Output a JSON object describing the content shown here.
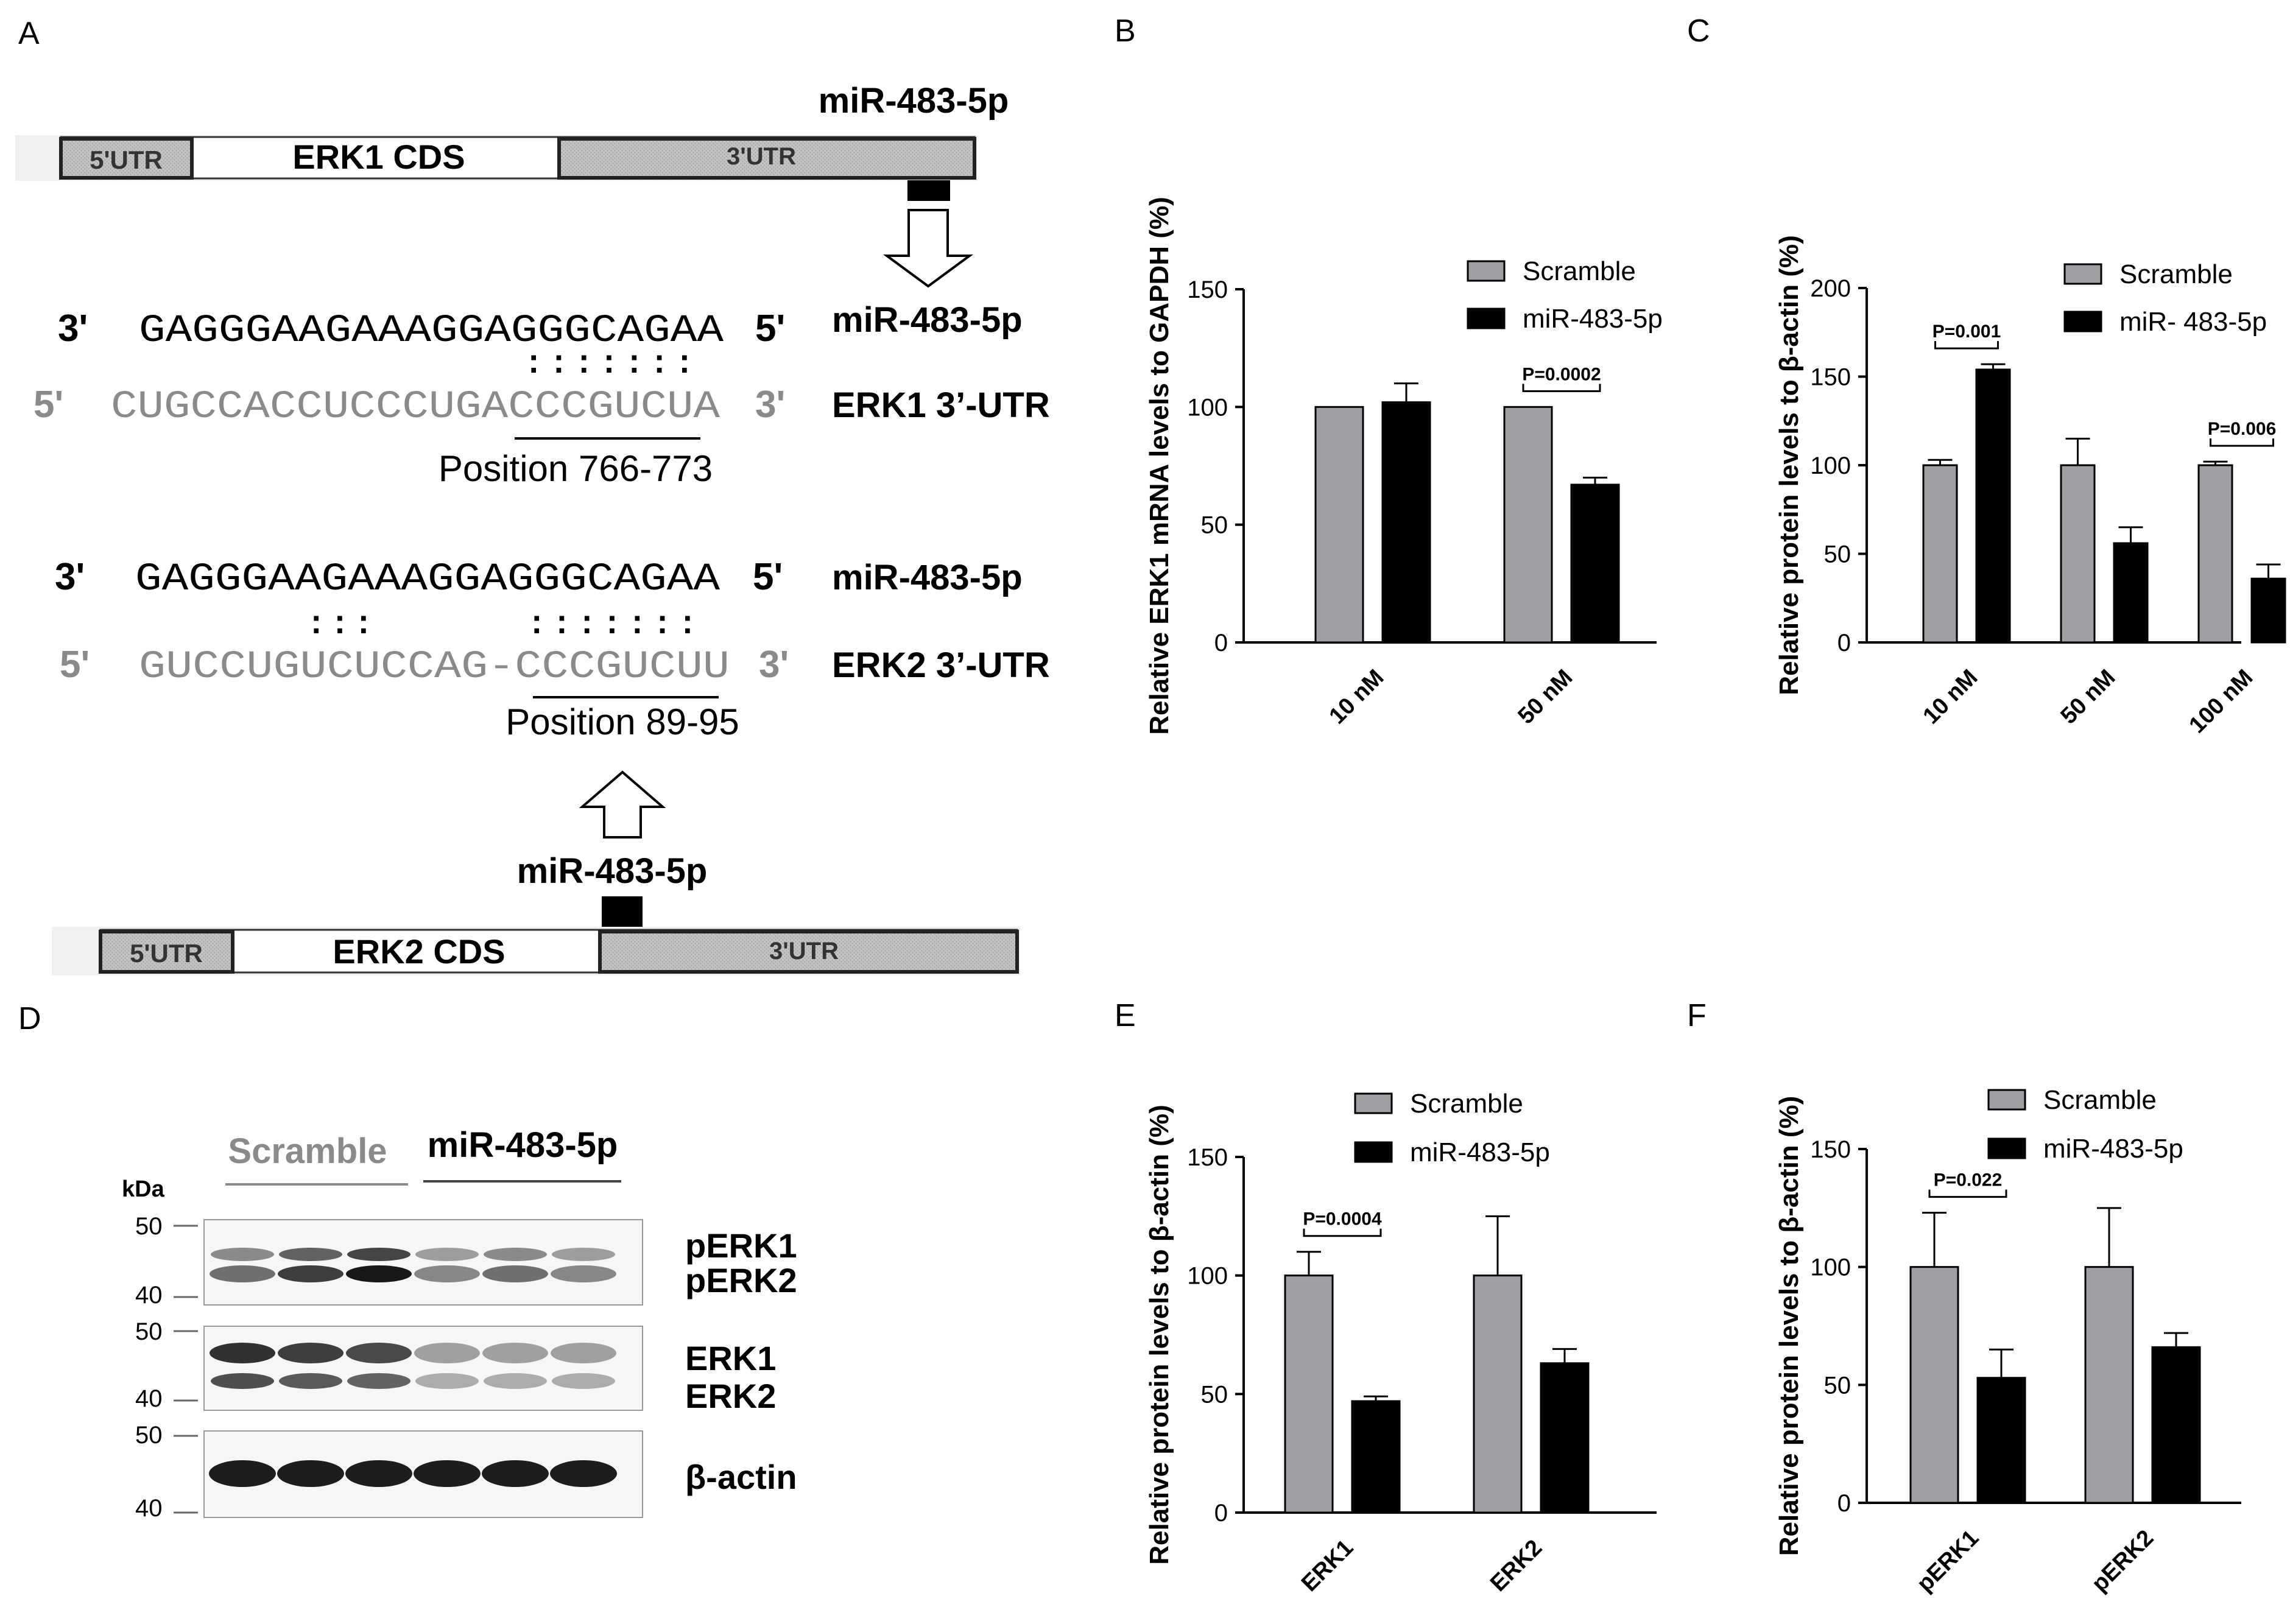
{
  "panel_letters": [
    "A",
    "B",
    "C",
    "D",
    "E",
    "F"
  ],
  "panel_a": {
    "erk1_map": {
      "utr5": "5'UTR",
      "cds": "ERK1 CDS",
      "utr3": "3'UTR",
      "mirna": "miR-483-5p"
    },
    "erk2_map": {
      "utr5": "5'UTR",
      "cds": "ERK2 CDS",
      "utr3": "3'UTR",
      "mirna": "miR-483-5p"
    },
    "duplex1": {
      "mi_end3": "3'",
      "mi_seq": "GAGGGAAGAAAGGAGGGCAGAA",
      "mi_end5": "5'",
      "mi_name": "miR-483-5p",
      "bars": ":::::::",
      "t_end5": "5'",
      "t_seq": "CUGCCACCUCCCUGACCCGUCUA",
      "t_end3": "3'",
      "t_name": "ERK1 3’-UTR",
      "position": "Position 766-773"
    },
    "duplex2": {
      "mi_end3": "3'",
      "mi_seq": "GAGGGAAGAAAGGAGGGCAGAA",
      "mi_end5": "5'",
      "mi_name": "miR-483-5p",
      "bars1": ":::",
      "bars2": ":::::::",
      "t_end5": "5'",
      "t_seq": "GUCCUGUCUCCAG-CCCGUCUU",
      "t_end3": "3'",
      "t_name": "ERK2 3’-UTR",
      "position": "Position 89-95"
    }
  },
  "panel_d": {
    "group1": "Scramble",
    "group2": "miR-483-5p",
    "kda": "kDa",
    "markers": [
      "50",
      "40",
      "50",
      "40",
      "50",
      "40"
    ],
    "labels": [
      "pERK1",
      "pERK2",
      "ERK1",
      "ERK2",
      "β-actin"
    ]
  },
  "colors": {
    "scramble": "#a0a0a4",
    "mir": "#000000",
    "gray_text": "#8a8a8a"
  },
  "chart_data": [
    {
      "panel": "B",
      "type": "bar",
      "ylabel": "Relative ERK1 mRNA levels to GAPDH (%)",
      "categories": [
        "10 nM",
        "50 nM"
      ],
      "ylim": [
        0,
        150
      ],
      "yticks": [
        "0",
        "50",
        "100",
        "150"
      ],
      "legend": [
        "Scramble",
        "miR-483-5p"
      ],
      "series": [
        {
          "name": "Scramble",
          "values": [
            100,
            100
          ],
          "err": [
            0,
            0
          ]
        },
        {
          "name": "miR-483-5p",
          "values": [
            102,
            67
          ],
          "err": [
            8,
            3
          ]
        }
      ],
      "annotations": [
        {
          "category": 1,
          "text": "P=0.0002"
        }
      ]
    },
    {
      "panel": "C",
      "type": "bar",
      "ylabel": "Relative protein levels to β-actin (%)",
      "categories": [
        "10 nM",
        "50 nM",
        "100 nM"
      ],
      "ylim": [
        0,
        200
      ],
      "yticks": [
        "0",
        "50",
        "100",
        "150",
        "200"
      ],
      "legend": [
        "Scramble",
        "miR- 483-5p"
      ],
      "series": [
        {
          "name": "Scramble",
          "values": [
            100,
            100,
            100
          ],
          "err": [
            3,
            15,
            2
          ]
        },
        {
          "name": "miR- 483-5p",
          "values": [
            154,
            56,
            36
          ],
          "err": [
            3,
            9,
            8
          ]
        }
      ],
      "annotations": [
        {
          "category": 0,
          "text": "P=0.001"
        },
        {
          "category": 2,
          "text": "P=0.006"
        }
      ]
    },
    {
      "panel": "E",
      "type": "bar",
      "ylabel": "Relative protein levels to β-actin (%)",
      "categories": [
        "ERK1",
        "ERK2"
      ],
      "ylim": [
        0,
        150
      ],
      "yticks": [
        "0",
        "50",
        "100",
        "150"
      ],
      "legend": [
        "Scramble",
        "miR-483-5p"
      ],
      "series": [
        {
          "name": "Scramble",
          "values": [
            100,
            100
          ],
          "err": [
            10,
            25
          ]
        },
        {
          "name": "miR-483-5p",
          "values": [
            47,
            63
          ],
          "err": [
            2,
            6
          ]
        }
      ],
      "annotations": [
        {
          "category": 0,
          "text": "P=0.0004"
        }
      ]
    },
    {
      "panel": "F",
      "type": "bar",
      "ylabel": "Relative protein levels to β-actin (%)",
      "categories": [
        "pERK1",
        "pERK2"
      ],
      "ylim": [
        0,
        150
      ],
      "yticks": [
        "0",
        "50",
        "100",
        "150"
      ],
      "legend": [
        "Scramble",
        "miR-483-5p"
      ],
      "series": [
        {
          "name": "Scramble",
          "values": [
            100,
            100
          ],
          "err": [
            23,
            25
          ]
        },
        {
          "name": "miR-483-5p",
          "values": [
            53,
            66
          ],
          "err": [
            12,
            6
          ]
        }
      ],
      "annotations": [
        {
          "category": 0,
          "text": "P=0.022"
        }
      ]
    }
  ]
}
